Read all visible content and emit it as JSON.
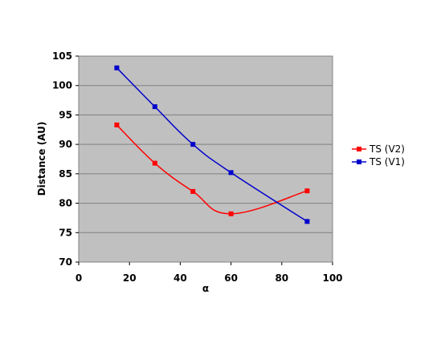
{
  "chart_data": {
    "type": "line",
    "xlabel": "α",
    "ylabel": "Distance (AU)",
    "xlim": [
      0,
      100
    ],
    "ylim": [
      70,
      105
    ],
    "xticks": [
      0,
      20,
      40,
      60,
      80,
      100
    ],
    "yticks": [
      70,
      75,
      80,
      85,
      90,
      95,
      100,
      105
    ],
    "grid": "horizontal",
    "legend_position": "right",
    "plot_background": "#c0c0c0",
    "series": [
      {
        "name": "TS (V2)",
        "color": "#ff0000",
        "smooth": true,
        "x": [
          15,
          30,
          45,
          60,
          90
        ],
        "y": [
          93.3,
          86.8,
          82.0,
          78.2,
          82.1
        ]
      },
      {
        "name": "TS (V1)",
        "color": "#0000cc",
        "smooth": true,
        "x": [
          15,
          30,
          45,
          60,
          90
        ],
        "y": [
          103.0,
          96.4,
          90.0,
          85.2,
          76.9
        ]
      }
    ]
  }
}
